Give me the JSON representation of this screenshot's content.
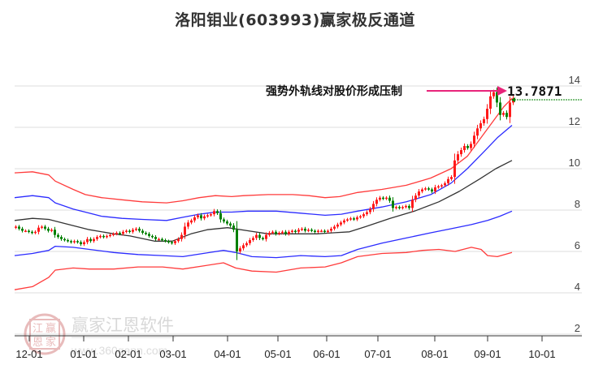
{
  "title": "洛阳钼业(603993)赢家极反通道",
  "annotation": {
    "text": "强势外轨线对股价形成压制",
    "price_label": "13.7871",
    "arrow_color": "#e8247a"
  },
  "watermark": {
    "name": "赢家江恩软件",
    "url": "www.360gann.com",
    "seal": [
      "江",
      "赢",
      "恩",
      "家"
    ]
  },
  "colors": {
    "up": "#ff1a1a",
    "down": "#008000",
    "outer_band": "#ff3b3b",
    "inner_band": "#2b2bff",
    "mid_line": "#333333",
    "grid": "#dddddd",
    "dashed_price": "#008000"
  },
  "chart_data": {
    "type": "candlestick",
    "title": "洛阳钼业(603993)赢家极反通道",
    "xlabel": "",
    "ylabel": "",
    "ylim": [
      2,
      14
    ],
    "y_ticks": [
      2,
      4,
      6,
      8,
      10,
      12,
      14
    ],
    "x_ticks": [
      "12-01",
      "01-01",
      "02-01",
      "03-01",
      "04-01",
      "05-01",
      "06-01",
      "07-01",
      "08-01",
      "09-01",
      "10-01"
    ],
    "x_tick_pos": [
      36,
      103,
      158,
      213,
      280,
      342,
      402,
      465,
      535,
      600,
      667
    ],
    "grid": true,
    "last_price": 13.7871,
    "series": [
      {
        "name": "upper_outer_band",
        "color": "red",
        "points": [
          [
            18,
            9.8
          ],
          [
            40,
            9.85
          ],
          [
            60,
            9.7
          ],
          [
            68,
            9.4
          ],
          [
            90,
            9.0
          ],
          [
            105,
            8.75
          ],
          [
            125,
            8.6
          ],
          [
            150,
            8.5
          ],
          [
            175,
            8.4
          ],
          [
            205,
            8.35
          ],
          [
            225,
            8.45
          ],
          [
            245,
            8.6
          ],
          [
            265,
            8.7
          ],
          [
            285,
            8.65
          ],
          [
            300,
            8.7
          ],
          [
            330,
            8.75
          ],
          [
            360,
            8.75
          ],
          [
            380,
            8.7
          ],
          [
            400,
            8.6
          ],
          [
            418,
            8.65
          ],
          [
            440,
            8.85
          ],
          [
            470,
            9.0
          ],
          [
            500,
            9.2
          ],
          [
            530,
            9.55
          ],
          [
            555,
            10.0
          ],
          [
            575,
            10.6
          ],
          [
            590,
            11.4
          ],
          [
            605,
            12.2
          ],
          [
            620,
            13.0
          ],
          [
            630,
            13.4
          ]
        ]
      },
      {
        "name": "upper_inner_band",
        "color": "blue",
        "points": [
          [
            18,
            8.6
          ],
          [
            40,
            8.7
          ],
          [
            60,
            8.6
          ],
          [
            68,
            8.35
          ],
          [
            90,
            8.05
          ],
          [
            105,
            7.9
          ],
          [
            125,
            7.7
          ],
          [
            150,
            7.6
          ],
          [
            175,
            7.55
          ],
          [
            205,
            7.5
          ],
          [
            225,
            7.65
          ],
          [
            245,
            7.8
          ],
          [
            265,
            7.9
          ],
          [
            285,
            7.9
          ],
          [
            305,
            7.95
          ],
          [
            340,
            7.95
          ],
          [
            370,
            7.85
          ],
          [
            400,
            7.75
          ],
          [
            420,
            7.8
          ],
          [
            440,
            7.95
          ],
          [
            470,
            8.15
          ],
          [
            500,
            8.4
          ],
          [
            530,
            8.75
          ],
          [
            555,
            9.3
          ],
          [
            575,
            10.0
          ],
          [
            595,
            10.8
          ],
          [
            612,
            11.5
          ],
          [
            630,
            12.1
          ]
        ]
      },
      {
        "name": "middle_line",
        "color": "black",
        "points": [
          [
            18,
            7.5
          ],
          [
            40,
            7.6
          ],
          [
            60,
            7.55
          ],
          [
            80,
            7.35
          ],
          [
            110,
            7.05
          ],
          [
            140,
            6.85
          ],
          [
            160,
            6.75
          ],
          [
            190,
            6.5
          ],
          [
            212,
            6.5
          ],
          [
            235,
            6.85
          ],
          [
            255,
            7.05
          ],
          [
            280,
            7.15
          ],
          [
            305,
            7.0
          ],
          [
            330,
            6.85
          ],
          [
            360,
            6.85
          ],
          [
            390,
            6.85
          ],
          [
            410,
            6.9
          ],
          [
            430,
            6.95
          ],
          [
            450,
            7.2
          ],
          [
            480,
            7.6
          ],
          [
            510,
            7.95
          ],
          [
            540,
            8.4
          ],
          [
            565,
            8.9
          ],
          [
            590,
            9.5
          ],
          [
            610,
            10.0
          ],
          [
            630,
            10.4
          ]
        ]
      },
      {
        "name": "lower_inner_band",
        "color": "blue",
        "points": [
          [
            18,
            5.8
          ],
          [
            40,
            5.9
          ],
          [
            60,
            6.05
          ],
          [
            68,
            6.25
          ],
          [
            90,
            6.2
          ],
          [
            110,
            6.1
          ],
          [
            140,
            5.95
          ],
          [
            170,
            5.85
          ],
          [
            200,
            5.8
          ],
          [
            225,
            5.75
          ],
          [
            250,
            5.9
          ],
          [
            275,
            6.05
          ],
          [
            290,
            5.95
          ],
          [
            310,
            5.75
          ],
          [
            340,
            5.7
          ],
          [
            370,
            5.8
          ],
          [
            400,
            5.75
          ],
          [
            420,
            5.8
          ],
          [
            440,
            6.1
          ],
          [
            470,
            6.4
          ],
          [
            500,
            6.65
          ],
          [
            530,
            6.9
          ],
          [
            555,
            7.1
          ],
          [
            580,
            7.3
          ],
          [
            600,
            7.5
          ],
          [
            615,
            7.7
          ],
          [
            630,
            7.95
          ]
        ]
      },
      {
        "name": "lower_outer_band",
        "color": "red",
        "points": [
          [
            18,
            4.15
          ],
          [
            40,
            4.3
          ],
          [
            60,
            4.75
          ],
          [
            68,
            5.1
          ],
          [
            90,
            5.2
          ],
          [
            110,
            5.15
          ],
          [
            140,
            5.15
          ],
          [
            170,
            5.25
          ],
          [
            200,
            5.25
          ],
          [
            225,
            5.15
          ],
          [
            250,
            5.3
          ],
          [
            275,
            5.45
          ],
          [
            290,
            5.2
          ],
          [
            310,
            5.05
          ],
          [
            340,
            5.0
          ],
          [
            370,
            5.2
          ],
          [
            400,
            5.25
          ],
          [
            420,
            5.45
          ],
          [
            440,
            5.75
          ],
          [
            470,
            5.9
          ],
          [
            500,
            5.95
          ],
          [
            520,
            6.05
          ],
          [
            540,
            6.1
          ],
          [
            560,
            6.0
          ],
          [
            580,
            6.2
          ],
          [
            592,
            6.1
          ],
          [
            600,
            5.8
          ],
          [
            612,
            5.75
          ],
          [
            630,
            5.95
          ]
        ]
      }
    ],
    "candles_close_path": [
      [
        18,
        7.2
      ],
      [
        22,
        7.1
      ],
      [
        26,
        7.0
      ],
      [
        30,
        7.0
      ],
      [
        34,
        6.95
      ],
      [
        38,
        6.9
      ],
      [
        42,
        6.95
      ],
      [
        46,
        7.15
      ],
      [
        50,
        7.2
      ],
      [
        54,
        7.1
      ],
      [
        58,
        7.0
      ],
      [
        62,
        7.05
      ],
      [
        66,
        6.8
      ],
      [
        70,
        6.7
      ],
      [
        74,
        6.6
      ],
      [
        78,
        6.55
      ],
      [
        82,
        6.5
      ],
      [
        86,
        6.45
      ],
      [
        90,
        6.5
      ],
      [
        94,
        6.45
      ],
      [
        98,
        6.35
      ],
      [
        102,
        6.45
      ],
      [
        106,
        6.6
      ],
      [
        110,
        6.5
      ],
      [
        114,
        6.6
      ],
      [
        118,
        6.7
      ],
      [
        122,
        6.75
      ],
      [
        126,
        6.7
      ],
      [
        130,
        6.75
      ],
      [
        134,
        6.8
      ],
      [
        138,
        6.85
      ],
      [
        142,
        6.9
      ],
      [
        146,
        6.85
      ],
      [
        150,
        6.95
      ],
      [
        154,
        7.0
      ],
      [
        158,
        6.95
      ],
      [
        162,
        7.05
      ],
      [
        166,
        7.1
      ],
      [
        170,
        7.0
      ],
      [
        174,
        6.9
      ],
      [
        178,
        6.85
      ],
      [
        182,
        6.75
      ],
      [
        186,
        6.7
      ],
      [
        190,
        6.6
      ],
      [
        194,
        6.6
      ],
      [
        198,
        6.55
      ],
      [
        202,
        6.5
      ],
      [
        206,
        6.45
      ],
      [
        210,
        6.4
      ],
      [
        214,
        6.5
      ],
      [
        218,
        6.6
      ],
      [
        222,
        6.8
      ],
      [
        226,
        7.2
      ],
      [
        230,
        7.4
      ],
      [
        234,
        7.5
      ],
      [
        238,
        7.65
      ],
      [
        242,
        7.75
      ],
      [
        246,
        7.6
      ],
      [
        250,
        7.7
      ],
      [
        254,
        7.75
      ],
      [
        258,
        7.8
      ],
      [
        262,
        7.95
      ],
      [
        266,
        7.85
      ],
      [
        270,
        7.55
      ],
      [
        274,
        7.45
      ],
      [
        278,
        7.35
      ],
      [
        282,
        7.25
      ],
      [
        286,
        7.05
      ],
      [
        290,
        6.0
      ],
      [
        294,
        6.15
      ],
      [
        298,
        6.3
      ],
      [
        302,
        6.4
      ],
      [
        306,
        6.55
      ],
      [
        310,
        6.65
      ],
      [
        314,
        6.8
      ],
      [
        318,
        6.65
      ],
      [
        322,
        6.6
      ],
      [
        326,
        6.8
      ],
      [
        330,
        6.9
      ],
      [
        334,
        6.95
      ],
      [
        338,
        6.85
      ],
      [
        342,
        6.9
      ],
      [
        346,
        6.95
      ],
      [
        350,
        6.85
      ],
      [
        354,
        6.95
      ],
      [
        358,
        7.0
      ],
      [
        362,
        6.95
      ],
      [
        366,
        7.05
      ],
      [
        370,
        7.1
      ],
      [
        374,
        7.0
      ],
      [
        378,
        7.05
      ],
      [
        382,
        7.0
      ],
      [
        386,
        6.95
      ],
      [
        390,
        7.0
      ],
      [
        394,
        7.0
      ],
      [
        398,
        6.95
      ],
      [
        402,
        7.0
      ],
      [
        406,
        7.1
      ],
      [
        410,
        7.2
      ],
      [
        414,
        7.3
      ],
      [
        418,
        7.4
      ],
      [
        422,
        7.5
      ],
      [
        426,
        7.55
      ],
      [
        430,
        7.6
      ],
      [
        434,
        7.55
      ],
      [
        438,
        7.65
      ],
      [
        442,
        7.7
      ],
      [
        446,
        7.8
      ],
      [
        450,
        7.9
      ],
      [
        454,
        8.05
      ],
      [
        458,
        8.3
      ],
      [
        462,
        8.5
      ],
      [
        466,
        8.6
      ],
      [
        470,
        8.55
      ],
      [
        474,
        8.6
      ],
      [
        478,
        8.45
      ],
      [
        482,
        8.1
      ],
      [
        486,
        8.15
      ],
      [
        490,
        8.1
      ],
      [
        494,
        8.15
      ],
      [
        498,
        8.2
      ],
      [
        502,
        8.1
      ],
      [
        506,
        8.5
      ],
      [
        510,
        8.7
      ],
      [
        514,
        8.9
      ],
      [
        518,
        9.0
      ],
      [
        522,
        9.05
      ],
      [
        526,
        9.0
      ],
      [
        530,
        8.9
      ],
      [
        534,
        9.1
      ],
      [
        538,
        9.15
      ],
      [
        542,
        9.2
      ],
      [
        546,
        9.3
      ],
      [
        550,
        9.5
      ],
      [
        554,
        9.6
      ],
      [
        558,
        10.4
      ],
      [
        562,
        10.7
      ],
      [
        566,
        10.9
      ],
      [
        570,
        11.1
      ],
      [
        574,
        11.0
      ],
      [
        578,
        11.2
      ],
      [
        582,
        11.6
      ],
      [
        586,
        11.95
      ],
      [
        590,
        12.2
      ],
      [
        594,
        12.4
      ],
      [
        598,
        12.9
      ],
      [
        602,
        13.5
      ],
      [
        606,
        13.7
      ],
      [
        610,
        13.2
      ],
      [
        614,
        12.6
      ],
      [
        618,
        12.7
      ],
      [
        622,
        12.5
      ],
      [
        626,
        13.2
      ],
      [
        630,
        13.4
      ]
    ]
  }
}
